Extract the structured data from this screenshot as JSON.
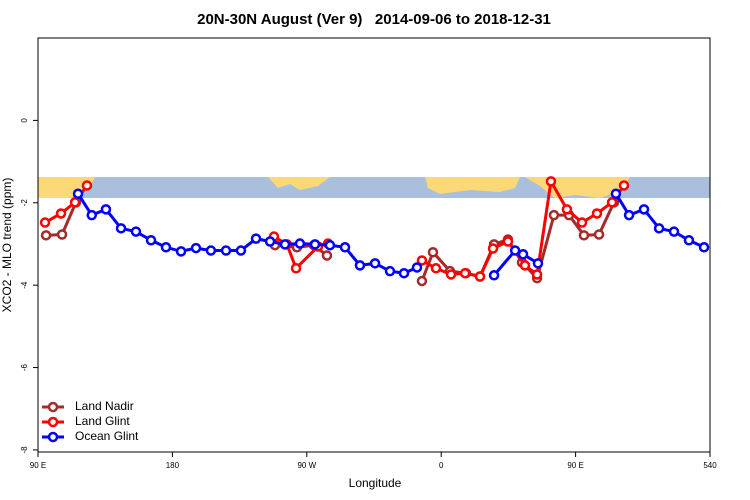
{
  "chart_data": {
    "type": "line",
    "title": "20N-30N August (Ver 9)   2014-09-06 to 2018-12-31",
    "x_label": "Longitude",
    "y_label": "XCO2 - MLO trend (ppm)",
    "xlim": [
      90,
      540
    ],
    "ylim": [
      -8.05,
      2
    ],
    "xticks": [
      {
        "value": 90,
        "label": "90 E"
      },
      180,
      {
        "value": 270,
        "label": "90 W"
      },
      {
        "value": 360,
        "label": "0"
      },
      {
        "value": 450,
        "label": "90 E"
      },
      540
    ],
    "yticks": [
      0,
      -2,
      -4,
      -6,
      -8
    ],
    "legend": "bottom-left",
    "series": [
      {
        "name": "Land Nadir",
        "color": "#a52a2a",
        "x": [
          95.4,
          106.1,
          115.4,
          null,
          248.7,
          263.4,
          274.8,
          283.5,
          null,
          347.1,
          354.5,
          365.9,
          376.6,
          386,
          395.4,
          404.7,
          414.1,
          424.2,
          435.5,
          445.6,
          455.6,
          465.7,
          475.7
        ],
        "values": [
          -2.79,
          -2.77,
          -1.99,
          null,
          -3.03,
          -3.08,
          -3.03,
          -3.28,
          null,
          -3.9,
          -3.2,
          -3.66,
          -3.71,
          -3.79,
          -3.01,
          -2.89,
          -3.45,
          -3.83,
          -2.3,
          -2.3,
          -2.79,
          -2.77,
          -1.99
        ]
      },
      {
        "name": "Land Glint",
        "color": "#ff0000",
        "x": [
          94.7,
          105.4,
          114.8,
          122.8,
          null,
          248,
          256.7,
          262.8,
          277.5,
          284.2,
          null,
          347.1,
          356.5,
          366.6,
          376,
          386,
          394.7,
          404.7,
          416.1,
          424.2,
          433.5,
          444.2,
          454.3,
          464.3,
          474.4,
          482.4
        ],
        "values": [
          -2.48,
          -2.26,
          -1.99,
          -1.58,
          null,
          -2.82,
          -3.01,
          -3.59,
          -3.06,
          -2.99,
          null,
          -3.4,
          -3.59,
          -3.74,
          -3.71,
          -3.79,
          -3.11,
          -2.94,
          -3.52,
          -3.74,
          -1.48,
          -2.16,
          -2.48,
          -2.26,
          -1.99,
          -1.58
        ]
      },
      {
        "name": "Ocean Glint",
        "color": "#0000ff",
        "x": [
          116.8,
          126,
          135.5,
          145.6,
          155.6,
          165.7,
          175.7,
          185.8,
          195.8,
          205.8,
          215.9,
          225.9,
          236,
          245.4,
          255.4,
          265.4,
          275.5,
          285.5,
          295.6,
          305.6,
          315.7,
          325.7,
          335.1,
          343.8,
          null,
          395.4,
          409.5,
          414.8,
          424.8,
          null,
          477,
          485.8,
          495.8,
          505.9,
          515.9,
          525.9,
          536
        ],
        "values": [
          -1.78,
          -2.3,
          -2.16,
          -2.62,
          -2.7,
          -2.91,
          -3.08,
          -3.18,
          -3.1,
          -3.16,
          -3.16,
          -3.16,
          -2.87,
          -2.94,
          -3.01,
          -2.99,
          -3.01,
          -3.03,
          -3.08,
          -3.52,
          -3.47,
          -3.66,
          -3.71,
          -3.57,
          null,
          -3.76,
          -3.16,
          -3.25,
          -3.47,
          null,
          -1.78,
          -2.3,
          -2.16,
          -2.62,
          -2.7,
          -2.91,
          -3.08
        ]
      }
    ]
  }
}
